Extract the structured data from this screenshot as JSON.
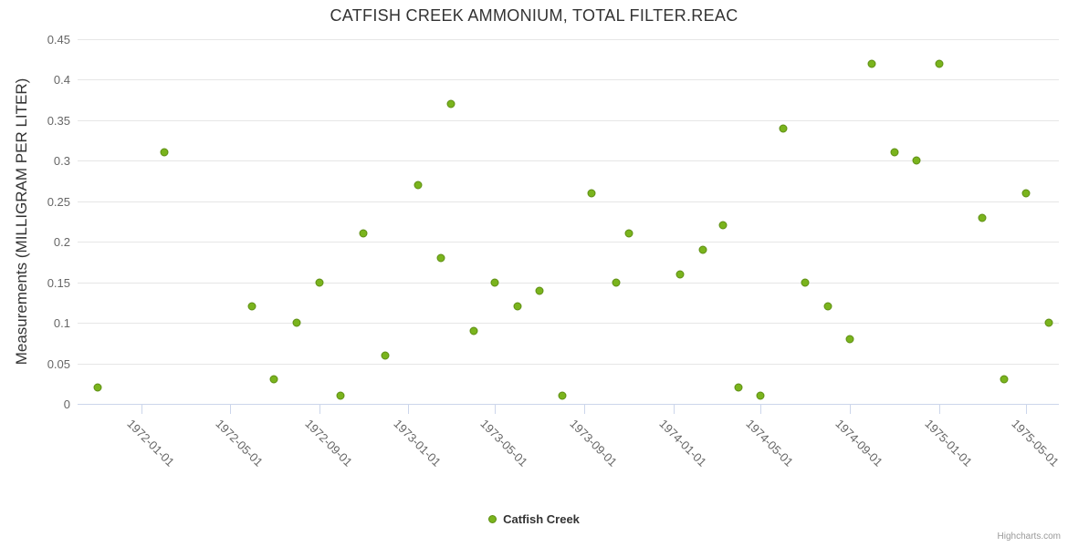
{
  "chart_data": {
    "type": "scatter",
    "title": "CATFISH CREEK AMMONIUM, TOTAL FILTER.REAC",
    "xlabel": "",
    "ylabel": "Measurements (MILLIGRAM PER LITER)",
    "ylim": [
      0,
      0.45
    ],
    "ytick_step": 0.05,
    "ytick_labels": [
      "0",
      "0.05",
      "0.1",
      "0.15",
      "0.2",
      "0.25",
      "0.3",
      "0.35",
      "0.4",
      "0.45"
    ],
    "xtick_labels": [
      "1972-01-01",
      "1972-05-01",
      "1972-09-01",
      "1973-01-01",
      "1973-05-01",
      "1973-09-01",
      "1974-01-01",
      "1974-05-01",
      "1974-09-01",
      "1975-01-01",
      "1975-05-01"
    ],
    "x_range": [
      "1971-10-05",
      "1975-06-15"
    ],
    "grid": true,
    "legend_position": "bottom-center",
    "series": [
      {
        "name": "Catfish Creek",
        "color": "#7ab41d",
        "points": [
          {
            "date": "1971-11-01",
            "value": 0.02
          },
          {
            "date": "1972-02-01",
            "value": 0.31
          },
          {
            "date": "1972-06-01",
            "value": 0.12
          },
          {
            "date": "1972-07-01",
            "value": 0.03
          },
          {
            "date": "1972-08-01",
            "value": 0.1
          },
          {
            "date": "1972-09-01",
            "value": 0.15
          },
          {
            "date": "1972-10-01",
            "value": 0.01
          },
          {
            "date": "1972-11-01",
            "value": 0.21
          },
          {
            "date": "1972-12-01",
            "value": 0.06
          },
          {
            "date": "1973-01-15",
            "value": 0.27
          },
          {
            "date": "1973-02-15",
            "value": 0.18
          },
          {
            "date": "1973-03-01",
            "value": 0.37
          },
          {
            "date": "1973-04-01",
            "value": 0.09
          },
          {
            "date": "1973-05-01",
            "value": 0.15
          },
          {
            "date": "1973-06-01",
            "value": 0.12
          },
          {
            "date": "1973-07-01",
            "value": 0.14
          },
          {
            "date": "1973-08-01",
            "value": 0.01
          },
          {
            "date": "1973-09-10",
            "value": 0.26
          },
          {
            "date": "1973-10-15",
            "value": 0.15
          },
          {
            "date": "1973-11-01",
            "value": 0.21
          },
          {
            "date": "1974-01-10",
            "value": 0.16
          },
          {
            "date": "1974-02-10",
            "value": 0.19
          },
          {
            "date": "1974-03-10",
            "value": 0.22
          },
          {
            "date": "1974-04-01",
            "value": 0.02
          },
          {
            "date": "1974-05-01",
            "value": 0.01
          },
          {
            "date": "1974-06-01",
            "value": 0.34
          },
          {
            "date": "1974-07-01",
            "value": 0.15
          },
          {
            "date": "1974-08-01",
            "value": 0.12
          },
          {
            "date": "1974-09-01",
            "value": 0.08
          },
          {
            "date": "1974-10-01",
            "value": 0.42
          },
          {
            "date": "1974-11-01",
            "value": 0.31
          },
          {
            "date": "1974-12-01",
            "value": 0.3
          },
          {
            "date": "1975-01-01",
            "value": 0.42
          },
          {
            "date": "1975-03-01",
            "value": 0.23
          },
          {
            "date": "1975-04-01",
            "value": 0.03
          },
          {
            "date": "1975-05-01",
            "value": 0.26
          },
          {
            "date": "1975-06-01",
            "value": 0.1
          }
        ]
      }
    ]
  },
  "legend": {
    "label": "Catfish Creek"
  },
  "credits": {
    "label": "Highcharts.com"
  },
  "colors": {
    "background": "#ffffff",
    "title": "#333333",
    "axis_title": "#333333",
    "axis_label": "#666666",
    "grid": "#e6e6e6",
    "axis_line": "#ccd6eb",
    "point_fill": "#7ab41d",
    "point_border": "#5e8e14",
    "legend_text": "#333333",
    "credits_text": "#999999"
  }
}
